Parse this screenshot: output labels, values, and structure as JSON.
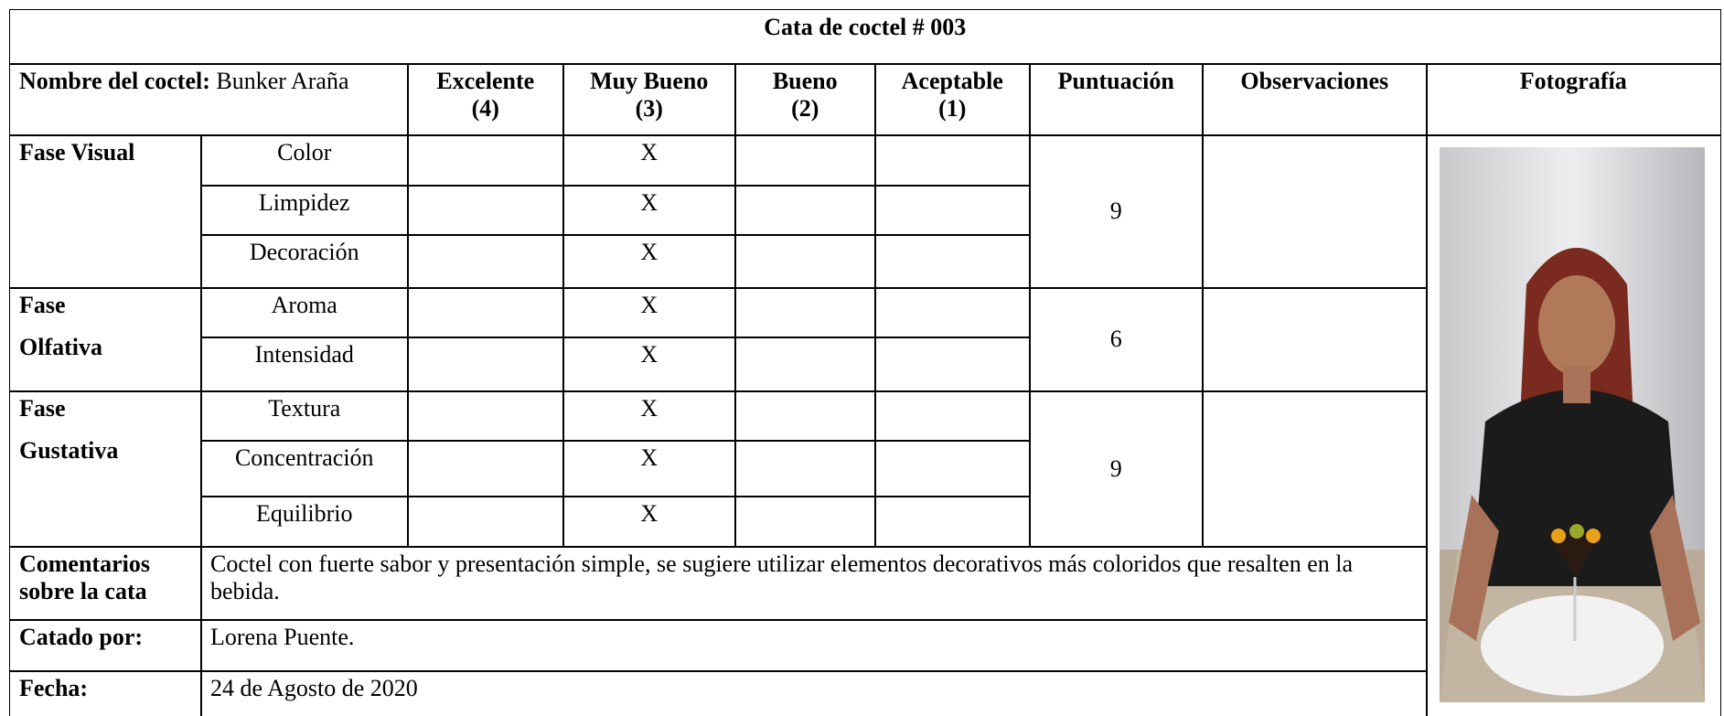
{
  "title": "Cata de coctel # 003",
  "header": {
    "name_label": "Nombre del coctel:",
    "name_value": "Bunker Araña",
    "ratings": [
      {
        "label": "Excelente",
        "score": "(4)"
      },
      {
        "label": "Muy Bueno",
        "score": "(3)"
      },
      {
        "label": "Bueno",
        "score": "(2)"
      },
      {
        "label": "Aceptable",
        "score": "(1)"
      }
    ],
    "score": "Puntuación",
    "observations": "Observaciones",
    "photo": "Fotografía"
  },
  "phases": [
    {
      "name": [
        "Fase Visual"
      ],
      "score": "9",
      "criteria": [
        {
          "name": "Color",
          "marks": [
            null,
            "X",
            null,
            null
          ]
        },
        {
          "name": "Limpidez",
          "marks": [
            null,
            "X",
            null,
            null
          ]
        },
        {
          "name": "Decoración",
          "marks": [
            null,
            "X",
            null,
            null
          ]
        }
      ]
    },
    {
      "name": [
        "Fase",
        "Olfativa"
      ],
      "score": "6",
      "criteria": [
        {
          "name": "Aroma",
          "marks": [
            null,
            "X",
            null,
            null
          ]
        },
        {
          "name": "Intensidad",
          "marks": [
            null,
            "X",
            null,
            null
          ]
        }
      ]
    },
    {
      "name": [
        "Fase",
        "Gustativa"
      ],
      "score": "9",
      "criteria": [
        {
          "name": "Textura",
          "marks": [
            null,
            "X",
            null,
            null
          ]
        },
        {
          "name": "Concentración",
          "marks": [
            null,
            "X",
            null,
            null
          ]
        },
        {
          "name": "Equilibrio",
          "marks": [
            null,
            "X",
            null,
            null
          ]
        }
      ]
    }
  ],
  "comments": {
    "label": "Comentarios sobre la cata",
    "text": "Coctel con fuerte sabor y presentación simple, se sugiere utilizar elementos decorativos más coloridos que resalten en la bebida."
  },
  "taster": {
    "label": "Catado por:",
    "value": "Lorena Puente."
  },
  "date": {
    "label": "Fecha:",
    "value": "24 de Agosto de 2020"
  }
}
